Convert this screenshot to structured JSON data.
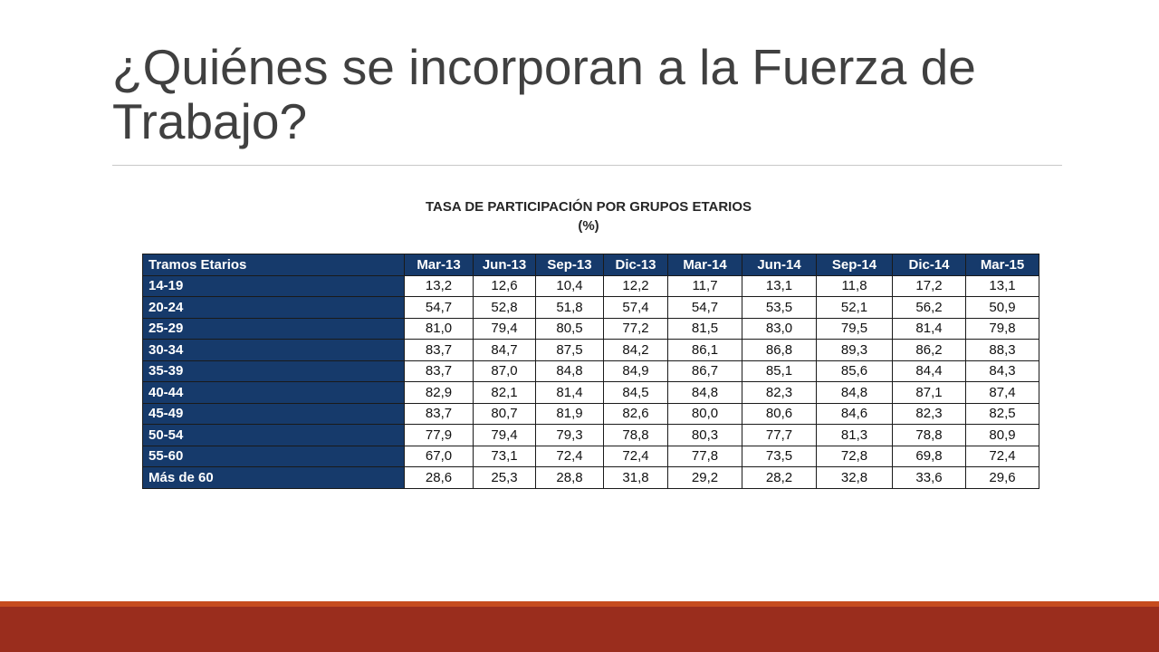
{
  "slide": {
    "title": "¿Quiénes se incorporan a la Fuerza de Trabajo?"
  },
  "table": {
    "caption_line1": "TASA DE PARTICIPACIÓN POR GRUPOS ETARIOS",
    "caption_line2": "(%)",
    "row_header_label": "Tramos Etarios",
    "columns": [
      "Mar-13",
      "Jun-13",
      "Sep-13",
      "Dic-13",
      "Mar-14",
      "Jun-14",
      "Sep-14",
      "Dic-14",
      "Mar-15"
    ],
    "rows": [
      {
        "label": "14-19",
        "values": [
          "13,2",
          "12,6",
          "10,4",
          "12,2",
          "11,7",
          "13,1",
          "11,8",
          "17,2",
          "13,1"
        ]
      },
      {
        "label": "20-24",
        "values": [
          "54,7",
          "52,8",
          "51,8",
          "57,4",
          "54,7",
          "53,5",
          "52,1",
          "56,2",
          "50,9"
        ]
      },
      {
        "label": "25-29",
        "values": [
          "81,0",
          "79,4",
          "80,5",
          "77,2",
          "81,5",
          "83,0",
          "79,5",
          "81,4",
          "79,8"
        ]
      },
      {
        "label": "30-34",
        "values": [
          "83,7",
          "84,7",
          "87,5",
          "84,2",
          "86,1",
          "86,8",
          "89,3",
          "86,2",
          "88,3"
        ]
      },
      {
        "label": "35-39",
        "values": [
          "83,7",
          "87,0",
          "84,8",
          "84,9",
          "86,7",
          "85,1",
          "85,6",
          "84,4",
          "84,3"
        ]
      },
      {
        "label": "40-44",
        "values": [
          "82,9",
          "82,1",
          "81,4",
          "84,5",
          "84,8",
          "82,3",
          "84,8",
          "87,1",
          "87,4"
        ]
      },
      {
        "label": "45-49",
        "values": [
          "83,7",
          "80,7",
          "81,9",
          "82,6",
          "80,0",
          "80,6",
          "84,6",
          "82,3",
          "82,5"
        ]
      },
      {
        "label": "50-54",
        "values": [
          "77,9",
          "79,4",
          "79,3",
          "78,8",
          "80,3",
          "77,7",
          "81,3",
          "78,8",
          "80,9"
        ]
      },
      {
        "label": "55-60",
        "values": [
          "67,0",
          "73,1",
          "72,4",
          "72,4",
          "77,8",
          "73,5",
          "72,8",
          "69,8",
          "72,4"
        ]
      },
      {
        "label": "Más de 60",
        "values": [
          "28,6",
          "25,3",
          "28,8",
          "31,8",
          "29,2",
          "28,2",
          "32,8",
          "33,6",
          "29,6"
        ]
      }
    ]
  },
  "colors": {
    "header_fill": "#163a6b",
    "title_text": "#404040",
    "footer_bar": "#9a2d1d",
    "footer_accent": "#c64b1e"
  }
}
